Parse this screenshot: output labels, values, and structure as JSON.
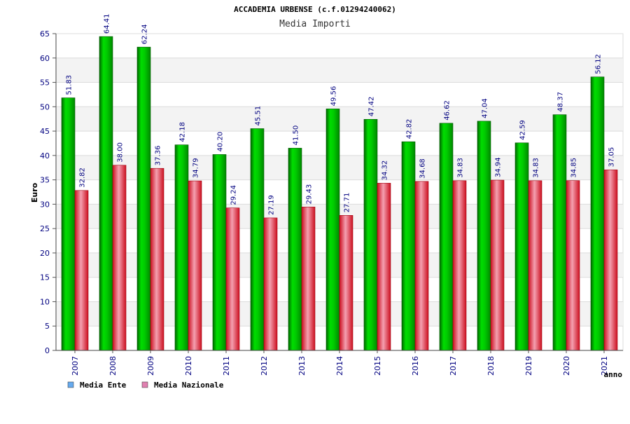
{
  "chart_data": {
    "type": "bar",
    "title": "ACCADEMIA URBENSE (c.f.01294240062)",
    "subtitle": "Media Importi",
    "ylabel": "Euro",
    "xlabel": "anno",
    "ylim": [
      0,
      65
    ],
    "yticks": [
      0,
      5,
      10,
      15,
      20,
      25,
      30,
      35,
      40,
      45,
      50,
      55,
      60,
      65
    ],
    "grid": true,
    "legend_position": "bottom-left",
    "categories": [
      "2007",
      "2008",
      "2009",
      "2010",
      "2011",
      "2012",
      "2013",
      "2014",
      "2015",
      "2016",
      "2017",
      "2018",
      "2019",
      "2020",
      "2021"
    ],
    "series": [
      {
        "name": "Media Ente",
        "color": "#00b000",
        "legend_color": "#66aaee",
        "values": [
          51.83,
          64.41,
          62.24,
          42.18,
          40.2,
          45.51,
          41.5,
          49.56,
          47.42,
          42.82,
          46.62,
          47.04,
          42.59,
          48.37,
          56.12
        ],
        "labels": [
          "51.83",
          "64.41",
          "62.24",
          "42.18",
          "40.20",
          "45.51",
          "41.50",
          "49.56",
          "47.42",
          "42.82",
          "46.62",
          "47.04",
          "42.59",
          "48.37",
          "56.12"
        ]
      },
      {
        "name": "Media Nazionale",
        "color": "#e83040",
        "legend_color": "#e080b0",
        "values": [
          32.82,
          38.0,
          37.36,
          34.79,
          29.24,
          27.19,
          29.43,
          27.71,
          34.32,
          34.68,
          34.83,
          34.94,
          34.83,
          34.85,
          37.05
        ],
        "labels": [
          "32.82",
          "38.00",
          "37.36",
          "34.79",
          "29.24",
          "27.19",
          "29.43",
          "27.71",
          "34.32",
          "34.68",
          "34.83",
          "34.94",
          "34.83",
          "34.85",
          "37.05"
        ]
      }
    ]
  }
}
